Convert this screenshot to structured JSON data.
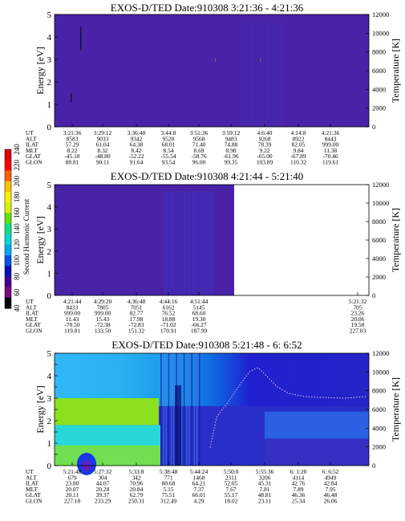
{
  "chart_data": {
    "type": "heatmap",
    "colorbar": {
      "label": "Second Harmonic Current",
      "ticks": [
        "40",
        "60",
        "80",
        "100",
        "120",
        "140",
        "160",
        "180",
        "200",
        "220",
        "240"
      ],
      "colors": [
        "#000000",
        "#7a0a84",
        "#4a0090",
        "#0a10b8",
        "#0850f0",
        "#00a8f0",
        "#00d8d0",
        "#10e080",
        "#60e010",
        "#d8f000",
        "#f8f000",
        "#ffc000",
        "#ff6000",
        "#ff0000",
        "#e00000"
      ]
    },
    "panels": [
      {
        "title": "EXOS-D/TED",
        "date": "Date:910308",
        "time_range": "3:21:36 - 4:21:36",
        "ylabel": "Energy [eV]",
        "ylabel_right": "Temperature [K]",
        "yticks": [
          "0",
          "1",
          "2",
          "3",
          "4",
          "5"
        ],
        "yticks_right": [
          "0",
          "2000",
          "4000",
          "6000",
          "8000",
          "10000",
          "12000"
        ],
        "ylim": [
          0,
          5
        ],
        "ylim_right": [
          0,
          12000
        ],
        "orbit_rows": [
          {
            "label": "UT",
            "values": [
              "3:21:36",
              "3:29:12",
              "3:36:40",
              "3:44:8",
              "3:51:36",
              "3:59:12",
              "4:6:40",
              "4:14:8",
              "4:21:36"
            ]
          },
          {
            "label": "ALT",
            "values": [
              "8583",
              "9033",
              "9342",
              "9520",
              "9568",
              "9483",
              "9268",
              "8922",
              "8443"
            ]
          },
          {
            "label": "ILAT",
            "values": [
              "57.29",
              "61.04",
              "64.38",
              "68.01",
              "71.40",
              "74.88",
              "78.39",
              "82.05",
              "999.00"
            ]
          },
          {
            "label": "MLT",
            "values": [
              "8.22",
              "8.32",
              "8.42",
              "8.54",
              "8.69",
              "8.90",
              "9.22",
              "9.84",
              "11.38"
            ]
          },
          {
            "label": "GLAT",
            "values": [
              "-45.18",
              "-48.80",
              "-52.22",
              "-55.54",
              "-58.76",
              "-61.96",
              "-65.00",
              "-67.89",
              "-70.46"
            ]
          },
          {
            "label": "GLON",
            "values": [
              "88.81",
              "90.11",
              "91.64",
              "93.54",
              "96.00",
              "99.35",
              "103.89",
              "110.32",
              "119.61"
            ]
          }
        ]
      },
      {
        "title": "EXOS-D/TED",
        "date": "Date:910308",
        "time_range": "4:21:44 - 5:21:40",
        "ylabel": "Energy [eV]",
        "ylabel_right": "Temperature [K]",
        "yticks": [
          "0",
          "1",
          "2",
          "3",
          "4",
          "5"
        ],
        "yticks_right": [
          "0",
          "2000",
          "4000",
          "6000",
          "8000",
          "10000",
          "12000"
        ],
        "ylim": [
          0,
          5
        ],
        "ylim_right": [
          0,
          12000
        ],
        "orbit_rows": [
          {
            "label": "UT",
            "values": [
              "4:21:44",
              "4:29:20",
              "4:36:48",
              "4:44:16",
              "4:51:44",
              "",
              "",
              "",
              "5:21:32"
            ]
          },
          {
            "label": "ALT",
            "values": [
              "8433",
              "7805",
              "7051",
              "6162",
              "5145",
              "",
              "",
              "",
              "705"
            ]
          },
          {
            "label": "ILAT",
            "values": [
              "999.00",
              "999.00",
              "82.77",
              "76.52",
              "68.60",
              "",
              "",
              "",
              "23.26"
            ]
          },
          {
            "label": "MLT",
            "values": [
              "11.43",
              "15.43",
              "17.98",
              "18.88",
              "19.30",
              "",
              "",
              "",
              "20.06"
            ]
          },
          {
            "label": "GLAT",
            "values": [
              "-70.50",
              "-72.38",
              "-72.83",
              "-71.02",
              "-66.27",
              "",
              "",
              "",
              "19.58"
            ]
          },
          {
            "label": "GLON",
            "values": [
              "119.81",
              "133.50",
              "151.32",
              "170.91",
              "187.99",
              "",
              "",
              "",
              "227.03"
            ]
          }
        ]
      },
      {
        "title": "EXOS-D/TED",
        "date": "Date:910308",
        "time_range": "5:21:48 - 6: 6:52",
        "ylabel": "Energy [eV]",
        "ylabel_right": "Temperature [K]",
        "yticks": [
          "0",
          "0.5",
          "1",
          "1.5",
          "2",
          "2.5",
          "3",
          "3.5",
          "4",
          "4.5",
          "5"
        ],
        "yticks_right": [
          "0",
          "2000",
          "4000",
          "6000",
          "8000",
          "10000",
          "12000"
        ],
        "ylim": [
          0,
          5
        ],
        "ylim_right": [
          0,
          12000
        ],
        "orbit_rows": [
          {
            "label": "UT",
            "values": [
              "5:21:48",
              "5:27:32",
              "5:33:8",
              "5:38:48",
              "5:44:24",
              "5:50:0",
              "5:55:36",
              "6: 1:20",
              "6: 6:52"
            ]
          },
          {
            "label": "ALT",
            "values": [
              "679",
              "304",
              "342",
              "771",
              "1468",
              "2311",
              "3206",
              "4114",
              "4949"
            ]
          },
          {
            "label": "ILAT",
            "values": [
              "23.80",
              "44.07",
              "70.96",
              "80.68",
              "64.21",
              "52.05",
              "45.31",
              "42.76",
              "42.84"
            ]
          },
          {
            "label": "MLT",
            "values": [
              "20.07",
              "20.28",
              "20.84",
              "5.15",
              "7.37",
              "7.67",
              "7.81",
              "7.89",
              "7.95"
            ]
          },
          {
            "label": "GLAT",
            "values": [
              "20.11",
              "39.37",
              "62.79",
              "75.51",
              "66.01",
              "55.17",
              "48.81",
              "46.36",
              "46.48"
            ]
          },
          {
            "label": "GLON",
            "values": [
              "227.18",
              "233.29",
              "250.31",
              "312.49",
              "4.29",
              "18.02",
              "23.11",
              "25.34",
              "26.06"
            ]
          }
        ]
      }
    ]
  }
}
